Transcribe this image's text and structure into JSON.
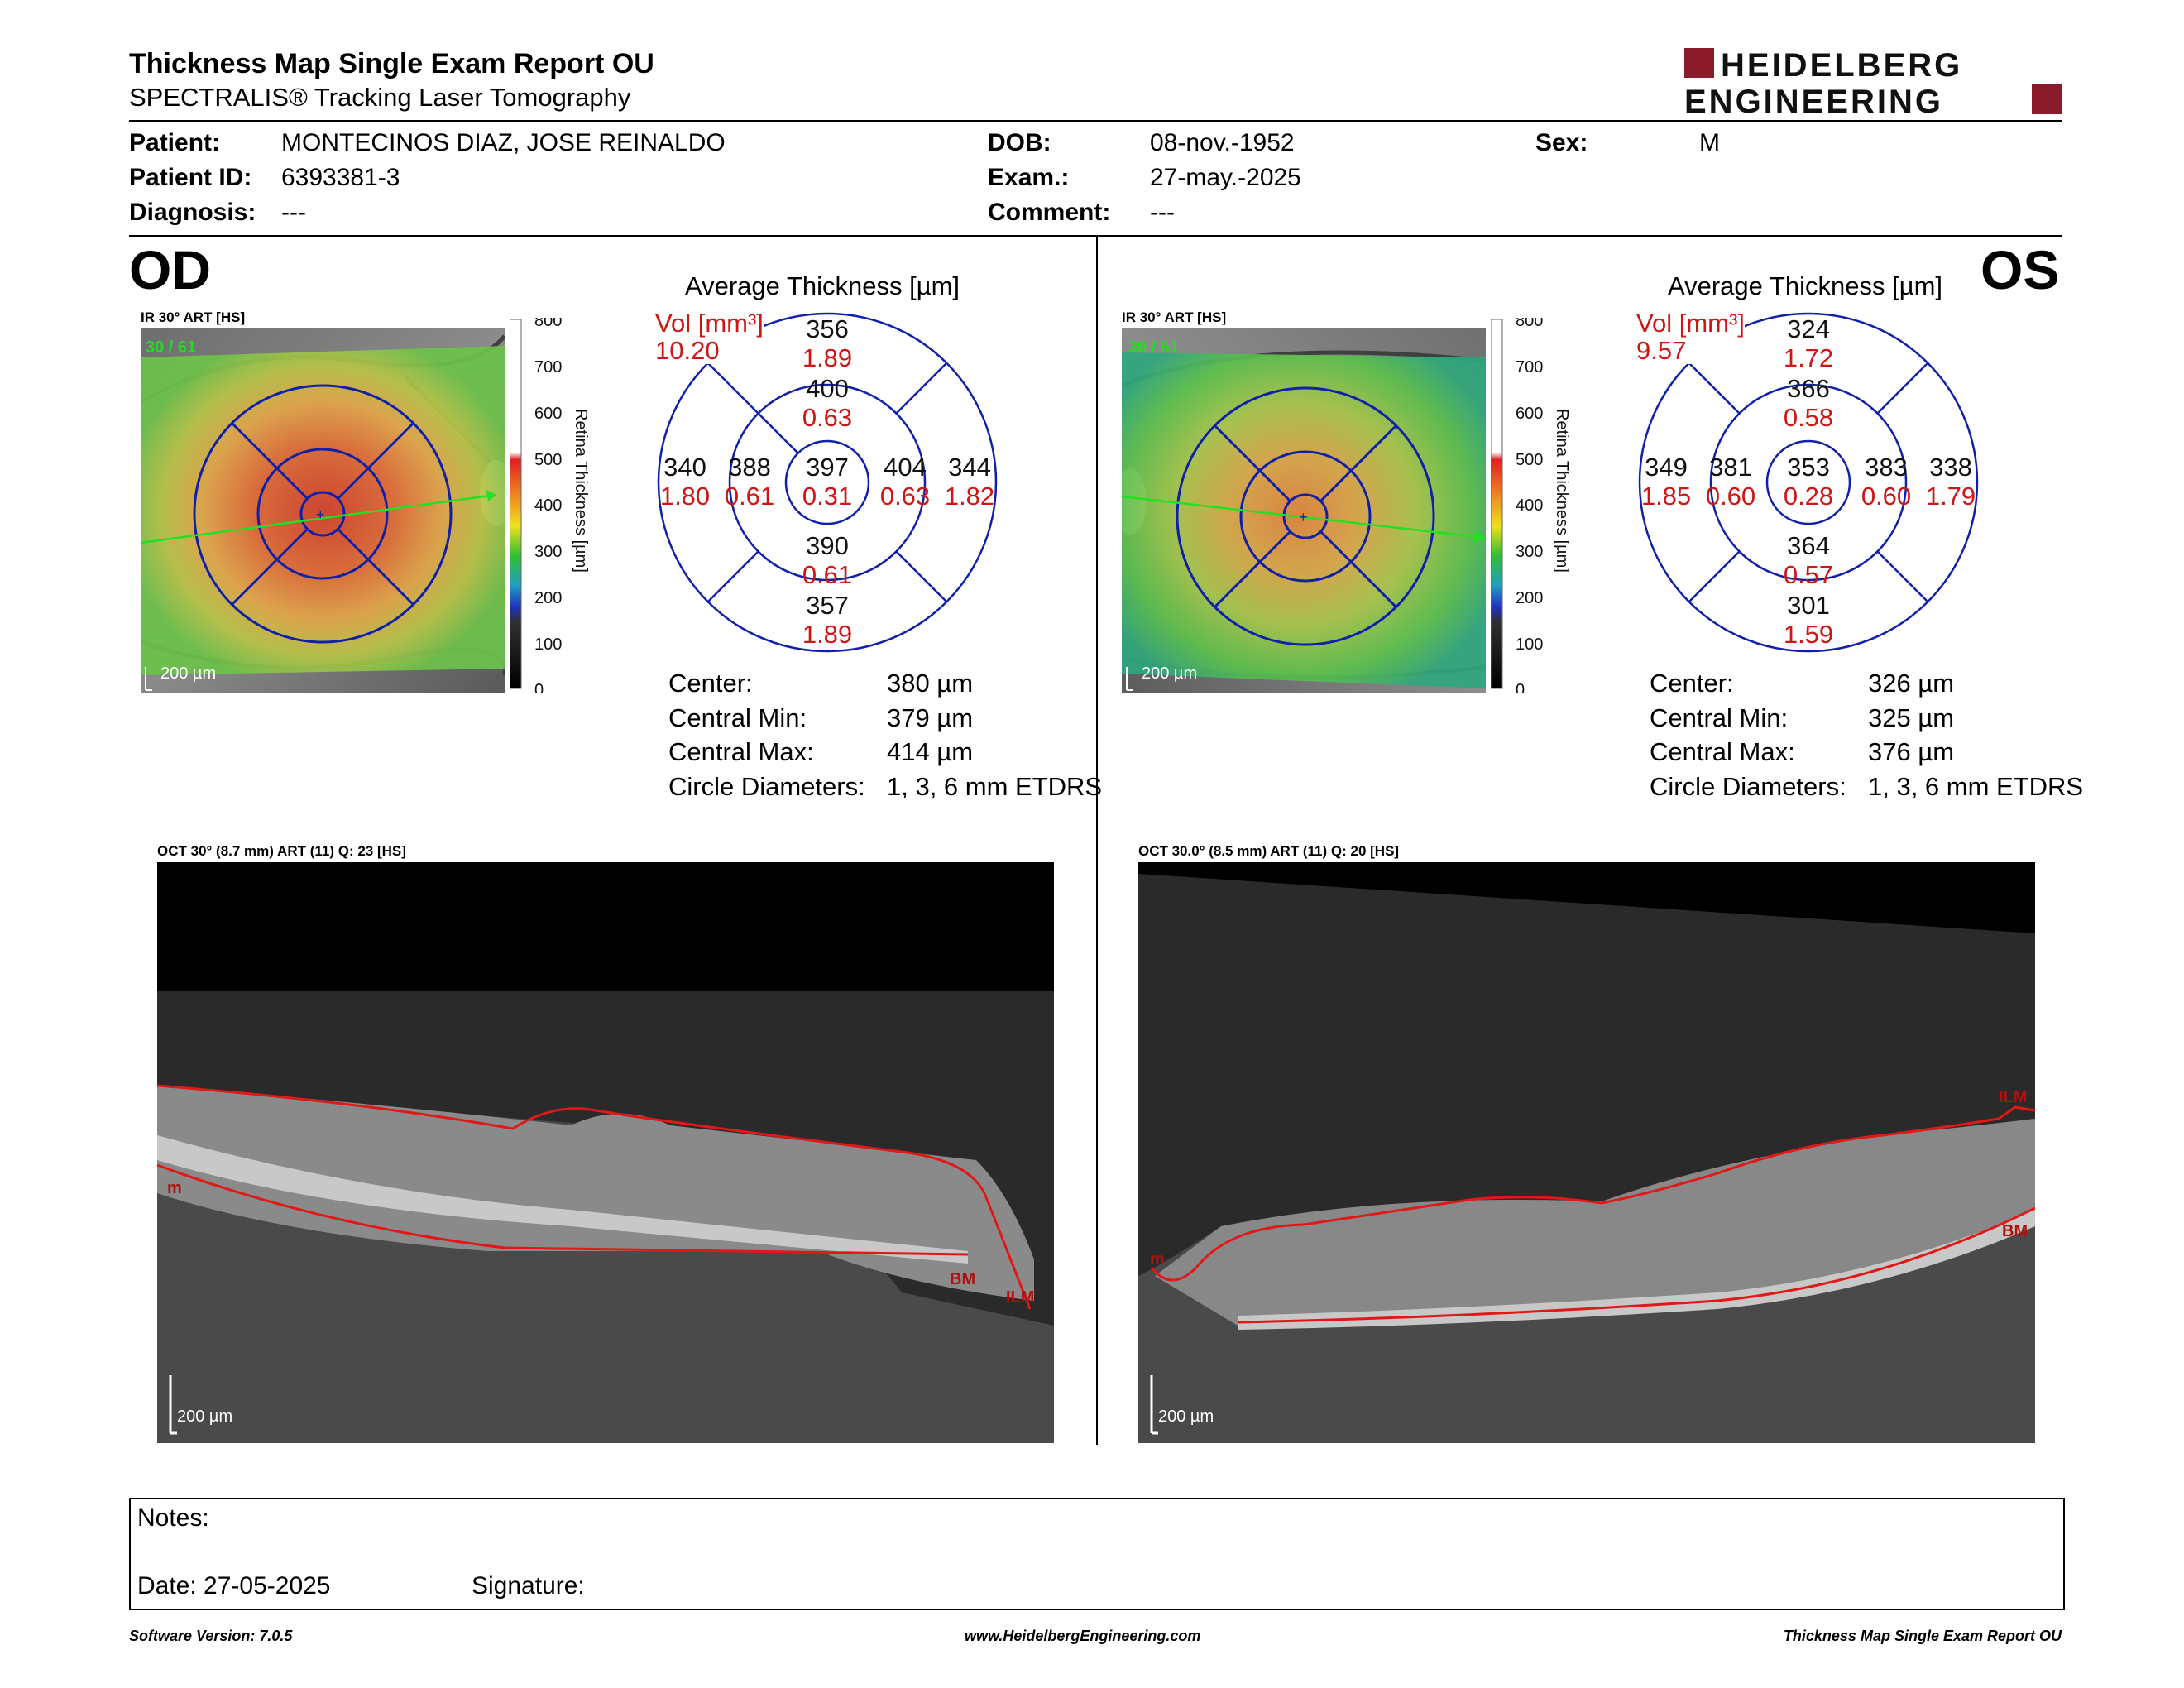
{
  "header": {
    "title": "Thickness Map Single Exam Report OU",
    "subtitle": "SPECTRALIS® Tracking Laser Tomography",
    "brand_line1": "HEIDELBERG",
    "brand_line2": "ENGINEERING",
    "brand_color": "#8b1a2b"
  },
  "patient": {
    "patient_label": "Patient:",
    "patient_value": "MONTECINOS DIAZ, JOSE REINALDO",
    "id_label": "Patient ID:",
    "id_value": "6393381-3",
    "diagnosis_label": "Diagnosis:",
    "diagnosis_value": "---",
    "dob_label": "DOB:",
    "dob_value": "08-nov.-1952",
    "exam_label": "Exam.:",
    "exam_value": "27-may.-2025",
    "comment_label": "Comment:",
    "comment_value": "---",
    "sex_label": "Sex:",
    "sex_value": "M"
  },
  "od": {
    "eye": "OD",
    "ir_label": "IR 30° ART [HS]",
    "frame_count": "30 / 61",
    "scale_bar": "200 µm",
    "colorbar_ticks": [
      "800",
      "700",
      "600",
      "500",
      "400",
      "300",
      "200",
      "100",
      "0"
    ],
    "colorbar_title": "Retina Thickness [µm]",
    "avg_title": "Average Thickness [µm]",
    "vol_label": "Vol [mm³]",
    "vol_value": "10.20",
    "grid": {
      "center_t": "397",
      "center_v": "0.31",
      "in_sup_t": "400",
      "in_sup_v": "0.63",
      "in_inf_t": "390",
      "in_inf_v": "0.61",
      "in_left_t": "388",
      "in_left_v": "0.61",
      "in_right_t": "404",
      "in_right_v": "0.63",
      "out_sup_t": "356",
      "out_sup_v": "1.89",
      "out_inf_t": "357",
      "out_inf_v": "1.89",
      "out_left_t": "340",
      "out_left_v": "1.80",
      "out_right_t": "344",
      "out_right_v": "1.82"
    },
    "stats": {
      "center_label": "Center:",
      "center_value": "380 µm",
      "min_label": "Central Min:",
      "min_value": "379 µm",
      "max_label": "Central Max:",
      "max_value": "414 µm",
      "diam_label": "Circle Diameters:",
      "diam_value": "1, 3, 6 mm ETDRS"
    },
    "oct_label": "OCT 30° (8.7 mm) ART (11) Q: 23 [HS]",
    "oct_marks": {
      "m": "m",
      "bm": "BM",
      "ilm": "ILM"
    },
    "oct_scale": "200 µm"
  },
  "os": {
    "eye": "OS",
    "ir_label": "IR 30° ART [HS]",
    "frame_count": "30 / 61",
    "scale_bar": "200 µm",
    "colorbar_ticks": [
      "800",
      "700",
      "600",
      "500",
      "400",
      "300",
      "200",
      "100",
      "0"
    ],
    "colorbar_title": "Retina Thickness [µm]",
    "avg_title": "Average Thickness [µm]",
    "vol_label": "Vol [mm³]",
    "vol_value": "9.57",
    "grid": {
      "center_t": "353",
      "center_v": "0.28",
      "in_sup_t": "366",
      "in_sup_v": "0.58",
      "in_inf_t": "364",
      "in_inf_v": "0.57",
      "in_left_t": "381",
      "in_left_v": "0.60",
      "in_right_t": "383",
      "in_right_v": "0.60",
      "out_sup_t": "324",
      "out_sup_v": "1.72",
      "out_inf_t": "301",
      "out_inf_v": "1.59",
      "out_left_t": "349",
      "out_left_v": "1.85",
      "out_right_t": "338",
      "out_right_v": "1.79"
    },
    "stats": {
      "center_label": "Center:",
      "center_value": "326 µm",
      "min_label": "Central Min:",
      "min_value": "325 µm",
      "max_label": "Central Max:",
      "max_value": "376 µm",
      "diam_label": "Circle Diameters:",
      "diam_value": "1, 3, 6 mm ETDRS"
    },
    "oct_label": "OCT 30.0° (8.5 mm) ART (11) Q: 20 [HS]",
    "oct_marks": {
      "m": "m",
      "bm": "BM",
      "ilm": "ILM"
    },
    "oct_scale": "200 µm"
  },
  "notes": {
    "notes_label": "Notes:",
    "date_label": "Date: 27-05-2025",
    "signature_label": "Signature:"
  },
  "footer": {
    "software": "Software Version: 7.0.5",
    "website": "www.HeidelbergEngineering.com",
    "report": "Thickness Map Single Exam Report OU"
  }
}
